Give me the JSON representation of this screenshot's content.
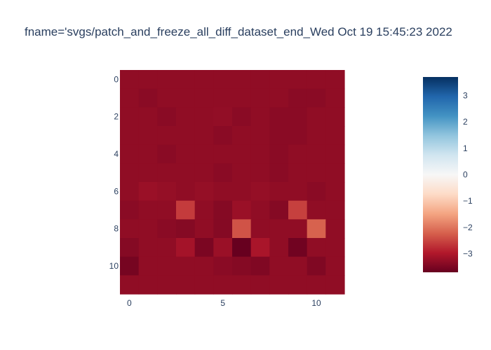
{
  "chart_data": {
    "type": "heatmap",
    "title": "fname='svgs/patch_and_freeze_all_diff_dataset_end_Wed Oct 19 15:45:23 2022",
    "xlabel": "",
    "ylabel": "",
    "x_ticks": [
      "0",
      "5",
      "10"
    ],
    "y_ticks": [
      "0",
      "2",
      "4",
      "6",
      "8",
      "10"
    ],
    "xlim": [
      -0.5,
      11.5
    ],
    "ylim": [
      -0.5,
      11.5
    ],
    "y_axis_reversed": true,
    "colorscale": "RdBu",
    "colorbar": {
      "min": -3.7,
      "max": 3.7,
      "ticks": [
        "3",
        "2",
        "1",
        "0",
        "−1",
        "−2",
        "−3"
      ],
      "tick_values": [
        3,
        2,
        1,
        0,
        -1,
        -2,
        -3
      ]
    },
    "z": [
      [
        -3.3,
        -3.3,
        -3.3,
        -3.3,
        -3.3,
        -3.3,
        -3.3,
        -3.3,
        -3.3,
        -3.3,
        -3.3,
        -3.3
      ],
      [
        -3.3,
        -3.35,
        -3.3,
        -3.3,
        -3.3,
        -3.3,
        -3.3,
        -3.3,
        -3.3,
        -3.35,
        -3.35,
        -3.3
      ],
      [
        -3.3,
        -3.3,
        -3.35,
        -3.3,
        -3.3,
        -3.28,
        -3.35,
        -3.3,
        -3.35,
        -3.35,
        -3.3,
        -3.3
      ],
      [
        -3.3,
        -3.3,
        -3.3,
        -3.3,
        -3.3,
        -3.35,
        -3.3,
        -3.3,
        -3.35,
        -3.35,
        -3.3,
        -3.3
      ],
      [
        -3.3,
        -3.3,
        -3.35,
        -3.3,
        -3.3,
        -3.3,
        -3.3,
        -3.3,
        -3.35,
        -3.3,
        -3.3,
        -3.3
      ],
      [
        -3.3,
        -3.3,
        -3.3,
        -3.3,
        -3.3,
        -3.35,
        -3.3,
        -3.3,
        -3.35,
        -3.3,
        -3.3,
        -3.3
      ],
      [
        -3.3,
        -3.2,
        -3.25,
        -3.3,
        -3.25,
        -3.3,
        -3.3,
        -3.25,
        -3.3,
        -3.3,
        -3.35,
        -3.3
      ],
      [
        -3.35,
        -3.3,
        -3.3,
        -2.6,
        -3.3,
        -3.4,
        -3.2,
        -3.3,
        -3.4,
        -2.55,
        -3.3,
        -3.3
      ],
      [
        -3.3,
        -3.3,
        -3.35,
        -3.4,
        -3.3,
        -3.4,
        -2.35,
        -3.3,
        -3.3,
        -3.3,
        -2.2,
        -3.3
      ],
      [
        -3.4,
        -3.3,
        -3.3,
        -3.1,
        -3.5,
        -3.2,
        -3.75,
        -3.05,
        -3.3,
        -3.6,
        -3.3,
        -3.3
      ],
      [
        -3.55,
        -3.3,
        -3.3,
        -3.3,
        -3.3,
        -3.35,
        -3.4,
        -3.45,
        -3.3,
        -3.3,
        -3.45,
        -3.3
      ],
      [
        -3.3,
        -3.3,
        -3.3,
        -3.3,
        -3.3,
        -3.3,
        -3.3,
        -3.3,
        -3.3,
        -3.3,
        -3.3,
        -3.3
      ]
    ]
  }
}
